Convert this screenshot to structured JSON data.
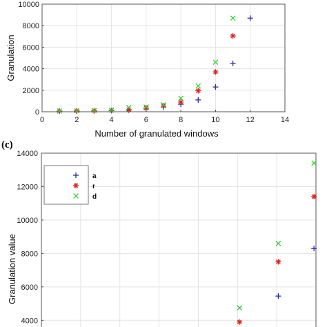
{
  "figure": {
    "panel_label_c": "(c)"
  },
  "chart_data": [
    {
      "type": "scatter",
      "title": "",
      "xlabel": "Number of granulated windows",
      "ylabel": "Granulation",
      "xlim": [
        0,
        14
      ],
      "ylim": [
        0,
        10000
      ],
      "xticks": [
        0,
        2,
        4,
        6,
        8,
        10,
        12,
        14
      ],
      "yticks": [
        0,
        2000,
        4000,
        6000,
        8000,
        10000
      ],
      "grid": true,
      "legend": "none",
      "series": [
        {
          "marker": "plus",
          "color": "#2a2aa0",
          "points": [
            [
              1,
              50
            ],
            [
              2,
              70
            ],
            [
              3,
              80
            ],
            [
              4,
              100
            ],
            [
              5,
              150
            ],
            [
              6,
              250
            ],
            [
              7,
              450
            ],
            [
              8,
              700
            ],
            [
              9,
              1100
            ],
            [
              10,
              2300
            ],
            [
              11,
              4500
            ],
            [
              12,
              8700
            ]
          ]
        },
        {
          "marker": "asterisk",
          "color": "#e02020",
          "points": [
            [
              1,
              60
            ],
            [
              2,
              80
            ],
            [
              3,
              100
            ],
            [
              4,
              120
            ],
            [
              5,
              200
            ],
            [
              6,
              350
            ],
            [
              7,
              550
            ],
            [
              8,
              900
            ],
            [
              9,
              1950
            ],
            [
              10,
              3700
            ],
            [
              11,
              7050
            ]
          ]
        },
        {
          "marker": "x",
          "color": "#30d030",
          "points": [
            [
              1,
              80
            ],
            [
              2,
              100
            ],
            [
              3,
              120
            ],
            [
              4,
              150
            ],
            [
              5,
              400
            ],
            [
              6,
              450
            ],
            [
              7,
              650
            ],
            [
              8,
              1250
            ],
            [
              9,
              2400
            ],
            [
              10,
              4600
            ],
            [
              11,
              8700
            ]
          ]
        }
      ]
    },
    {
      "type": "scatter",
      "title": "",
      "xlabel": "",
      "ylabel": "Granulation value",
      "ylim": [
        3600,
        14000
      ],
      "yticks": [
        4000,
        6000,
        8000,
        10000,
        12000,
        14000
      ],
      "xlim": [
        0,
        7
      ],
      "xticklabels_visible": false,
      "grid": true,
      "legend": "top-left",
      "series": [
        {
          "name": "a",
          "marker": "plus",
          "color": "#2a2aa0",
          "points": [
            [
              6.04,
              5450
            ],
            [
              6.95,
              8300
            ]
          ]
        },
        {
          "name": "r",
          "marker": "asterisk",
          "color": "#e02020",
          "points": [
            [
              5.05,
              3900
            ],
            [
              6.04,
              7500
            ],
            [
              6.95,
              11400
            ]
          ]
        },
        {
          "name": "d",
          "marker": "x",
          "color": "#30d030",
          "points": [
            [
              5.05,
              4750
            ],
            [
              6.04,
              8600
            ],
            [
              6.95,
              13400
            ]
          ]
        }
      ]
    }
  ]
}
